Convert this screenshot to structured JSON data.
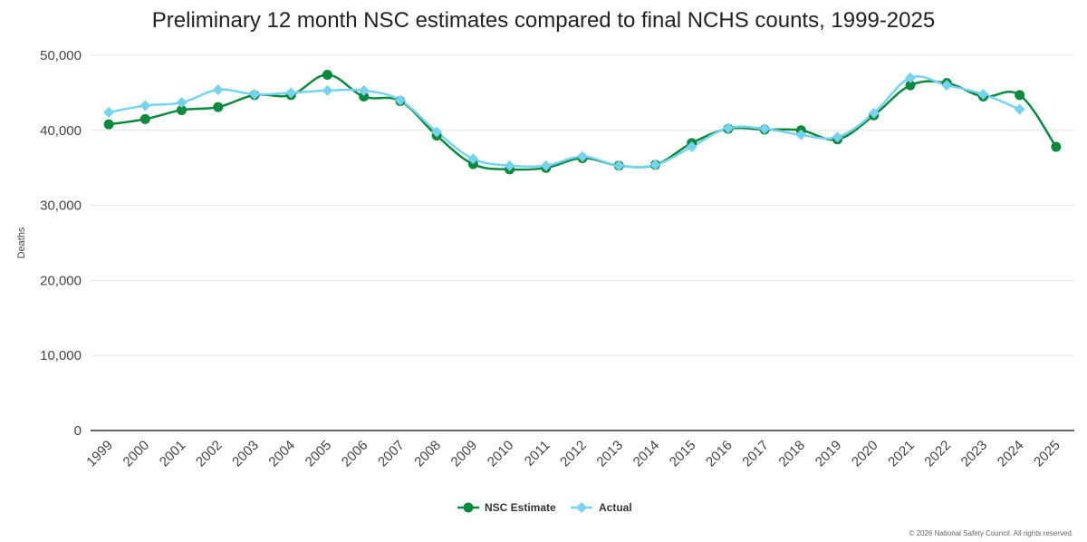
{
  "chart_data": {
    "type": "line",
    "title": "Preliminary 12 month NSC estimates compared to final NCHS counts, 1999-2025",
    "xlabel": "",
    "ylabel": "Deaths",
    "ylim": [
      0,
      50000
    ],
    "yticks": [
      0,
      10000,
      20000,
      30000,
      40000,
      50000
    ],
    "ytick_labels": [
      "0",
      "10,000",
      "20,000",
      "30,000",
      "40,000",
      "50,000"
    ],
    "categories": [
      "1999",
      "2000",
      "2001",
      "2002",
      "2003",
      "2004",
      "2005",
      "2006",
      "2007",
      "2008",
      "2009",
      "2010",
      "2011",
      "2012",
      "2013",
      "2014",
      "2015",
      "2016",
      "2017",
      "2018",
      "2019",
      "2020",
      "2021",
      "2022",
      "2023",
      "2024",
      "2025"
    ],
    "series": [
      {
        "name": "NSC Estimate",
        "color": "#0b8a3e",
        "marker": "circle",
        "values": [
          40800,
          41500,
          42700,
          43100,
          44700,
          44700,
          47400,
          44500,
          43900,
          39300,
          35500,
          34800,
          35000,
          36300,
          35300,
          35400,
          38300,
          40200,
          40100,
          40000,
          38800,
          42000,
          46000,
          46300,
          44500,
          44700,
          37800
        ]
      },
      {
        "name": "Actual",
        "color": "#76d3ef",
        "marker": "diamond",
        "values": [
          42400,
          43300,
          43700,
          45400,
          44800,
          45000,
          45300,
          45300,
          44000,
          39800,
          36200,
          35300,
          35300,
          36500,
          35300,
          35400,
          37800,
          40300,
          40200,
          39400,
          39100,
          42300,
          47000,
          46000,
          44800,
          42800,
          null
        ]
      }
    ],
    "legend": "bottom-center"
  },
  "footer": {
    "copyright": "© 2026 National Safety Council. All rights reserved."
  }
}
